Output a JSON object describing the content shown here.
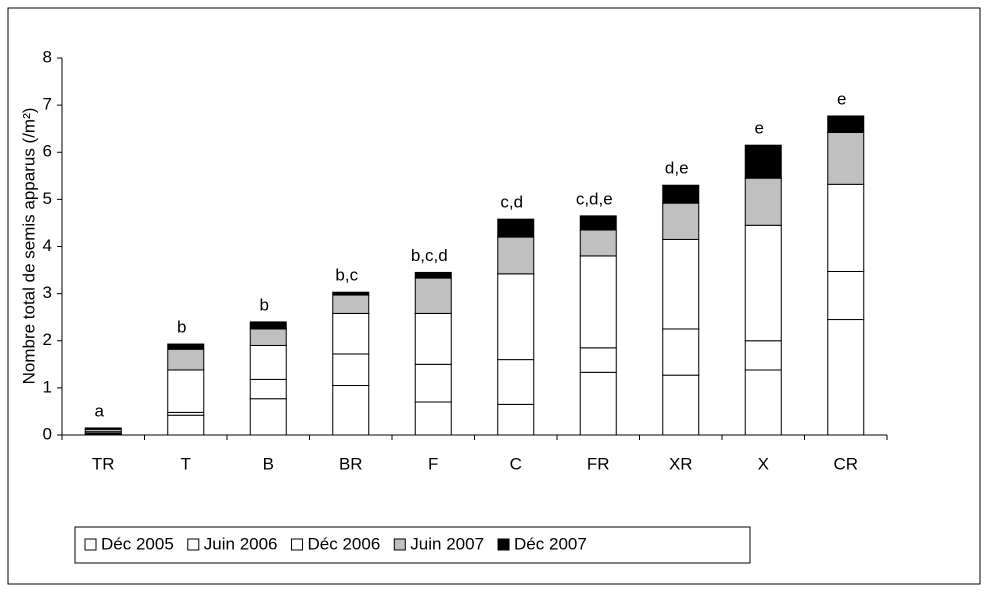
{
  "chart_data": {
    "type": "stacked_bar",
    "y_label": "Nombre total de semis apparus (/m²)",
    "categories": [
      "TR",
      "T",
      "B",
      "BR",
      "F",
      "C",
      "FR",
      "XR",
      "X",
      "CR"
    ],
    "series": [
      {
        "name": "Déc 2005",
        "color": "#ffffff",
        "values": [
          0.02,
          0.42,
          0.77,
          1.05,
          0.7,
          0.65,
          1.33,
          1.27,
          1.38,
          2.45
        ]
      },
      {
        "name": "Juin 2006",
        "color": "#ffffff",
        "values": [
          0.02,
          0.06,
          0.41,
          0.67,
          0.8,
          0.95,
          0.52,
          0.98,
          0.62,
          1.02
        ]
      },
      {
        "name": "Déc 2006",
        "color": "#ffffff",
        "values": [
          0.03,
          0.9,
          0.72,
          0.86,
          1.08,
          1.82,
          1.95,
          1.9,
          2.45,
          1.85
        ]
      },
      {
        "name": "Juin 2007",
        "color": "#c0c0c0",
        "values": [
          0.05,
          0.44,
          0.35,
          0.39,
          0.75,
          0.78,
          0.55,
          0.77,
          1.0,
          1.1
        ]
      },
      {
        "name": "Déc 2007",
        "color": "#000000",
        "values": [
          0.03,
          0.11,
          0.15,
          0.06,
          0.12,
          0.38,
          0.3,
          0.38,
          0.7,
          0.35
        ]
      }
    ],
    "annotations": [
      "a",
      "b",
      "b",
      "b,c",
      "b,c,d",
      "c,d",
      "c,d,e",
      "d,e",
      "e",
      "e"
    ],
    "ylim": [
      0,
      8
    ],
    "yticks": [
      0,
      1,
      2,
      3,
      4,
      5,
      6,
      7,
      8
    ],
    "grid": false
  }
}
